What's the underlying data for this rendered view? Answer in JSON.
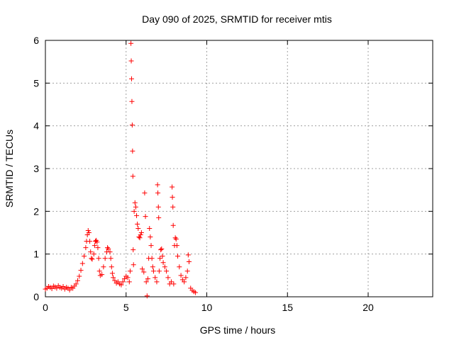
{
  "chart_data": {
    "type": "scatter",
    "title": "Day 090 of 2025, SRMTID for receiver mtis",
    "xlabel": "GPS time / hours",
    "ylabel": "SRMTID / TECUs",
    "xlim": [
      0,
      24
    ],
    "ylim": [
      0,
      6
    ],
    "xticks": [
      0,
      5,
      10,
      15,
      20
    ],
    "yticks": [
      0,
      1,
      2,
      3,
      4,
      5,
      6
    ],
    "grid": true,
    "marker": "+",
    "series": [
      {
        "name": "SRMTID",
        "color": "#ff0000",
        "points": [
          [
            0.0,
            0.18
          ],
          [
            0.1,
            0.2
          ],
          [
            0.2,
            0.24
          ],
          [
            0.3,
            0.22
          ],
          [
            0.4,
            0.19
          ],
          [
            0.5,
            0.25
          ],
          [
            0.6,
            0.23
          ],
          [
            0.7,
            0.2
          ],
          [
            0.8,
            0.26
          ],
          [
            0.9,
            0.22
          ],
          [
            1.0,
            0.2
          ],
          [
            1.1,
            0.24
          ],
          [
            1.2,
            0.18
          ],
          [
            1.3,
            0.22
          ],
          [
            1.4,
            0.2
          ],
          [
            1.5,
            0.16
          ],
          [
            1.6,
            0.22
          ],
          [
            1.7,
            0.2
          ],
          [
            1.8,
            0.25
          ],
          [
            1.9,
            0.3
          ],
          [
            2.0,
            0.38
          ],
          [
            2.1,
            0.48
          ],
          [
            2.2,
            0.62
          ],
          [
            2.3,
            0.78
          ],
          [
            2.4,
            0.95
          ],
          [
            2.5,
            1.15
          ],
          [
            2.55,
            1.3
          ],
          [
            2.6,
            1.45
          ],
          [
            2.65,
            1.55
          ],
          [
            2.7,
            1.5
          ],
          [
            2.75,
            1.3
          ],
          [
            2.8,
            1.05
          ],
          [
            2.85,
            0.9
          ],
          [
            2.9,
            0.88
          ],
          [
            3.0,
            1.0
          ],
          [
            3.05,
            1.2
          ],
          [
            3.1,
            1.3
          ],
          [
            3.15,
            1.32
          ],
          [
            3.2,
            1.28
          ],
          [
            3.25,
            1.15
          ],
          [
            3.3,
            0.9
          ],
          [
            3.35,
            0.6
          ],
          [
            3.4,
            0.5
          ],
          [
            3.5,
            0.52
          ],
          [
            3.6,
            0.7
          ],
          [
            3.7,
            0.9
          ],
          [
            3.8,
            1.05
          ],
          [
            3.85,
            1.15
          ],
          [
            3.9,
            1.12
          ],
          [
            4.0,
            1.05
          ],
          [
            4.05,
            0.9
          ],
          [
            4.1,
            0.7
          ],
          [
            4.15,
            0.55
          ],
          [
            4.2,
            0.45
          ],
          [
            4.3,
            0.38
          ],
          [
            4.4,
            0.32
          ],
          [
            4.5,
            0.35
          ],
          [
            4.6,
            0.3
          ],
          [
            4.7,
            0.28
          ],
          [
            4.8,
            0.35
          ],
          [
            4.9,
            0.42
          ],
          [
            5.0,
            0.48
          ],
          [
            5.1,
            0.45
          ],
          [
            5.2,
            0.35
          ],
          [
            5.25,
            0.6
          ],
          [
            5.3,
            5.93
          ],
          [
            5.32,
            5.52
          ],
          [
            5.34,
            5.1
          ],
          [
            5.36,
            4.57
          ],
          [
            5.38,
            4.02
          ],
          [
            5.4,
            3.41
          ],
          [
            5.42,
            2.82
          ],
          [
            5.44,
            1.1
          ],
          [
            5.46,
            0.75
          ],
          [
            5.5,
            2.0
          ],
          [
            5.55,
            2.2
          ],
          [
            5.6,
            2.1
          ],
          [
            5.65,
            1.9
          ],
          [
            5.7,
            1.7
          ],
          [
            5.75,
            1.6
          ],
          [
            5.8,
            1.4
          ],
          [
            5.85,
            1.38
          ],
          [
            5.9,
            1.45
          ],
          [
            5.95,
            1.5
          ],
          [
            6.0,
            0.65
          ],
          [
            6.1,
            0.58
          ],
          [
            6.15,
            2.43
          ],
          [
            6.2,
            1.88
          ],
          [
            6.25,
            0.35
          ],
          [
            6.3,
            0.02
          ],
          [
            6.35,
            0.42
          ],
          [
            6.4,
            0.9
          ],
          [
            6.45,
            1.6
          ],
          [
            6.5,
            1.4
          ],
          [
            6.55,
            1.2
          ],
          [
            6.6,
            0.9
          ],
          [
            6.65,
            0.7
          ],
          [
            6.7,
            0.6
          ],
          [
            6.8,
            0.45
          ],
          [
            6.9,
            0.35
          ],
          [
            6.95,
            2.62
          ],
          [
            6.97,
            2.43
          ],
          [
            7.0,
            2.1
          ],
          [
            7.02,
            1.85
          ],
          [
            7.05,
            0.6
          ],
          [
            7.1,
            0.9
          ],
          [
            7.15,
            1.1
          ],
          [
            7.2,
            1.12
          ],
          [
            7.25,
            0.95
          ],
          [
            7.3,
            0.8
          ],
          [
            7.4,
            0.7
          ],
          [
            7.5,
            0.6
          ],
          [
            7.6,
            0.45
          ],
          [
            7.7,
            0.3
          ],
          [
            7.8,
            0.35
          ],
          [
            7.85,
            2.57
          ],
          [
            7.87,
            2.33
          ],
          [
            7.9,
            2.1
          ],
          [
            7.92,
            1.67
          ],
          [
            7.95,
            0.3
          ],
          [
            8.0,
            1.2
          ],
          [
            8.05,
            1.38
          ],
          [
            8.1,
            1.35
          ],
          [
            8.15,
            1.2
          ],
          [
            8.2,
            0.95
          ],
          [
            8.3,
            0.7
          ],
          [
            8.4,
            0.5
          ],
          [
            8.5,
            0.4
          ],
          [
            8.6,
            0.35
          ],
          [
            8.7,
            0.45
          ],
          [
            8.8,
            0.6
          ],
          [
            8.85,
            0.98
          ],
          [
            8.9,
            0.82
          ],
          [
            9.0,
            0.2
          ],
          [
            9.1,
            0.15
          ],
          [
            9.2,
            0.12
          ],
          [
            9.3,
            0.1
          ]
        ]
      }
    ]
  }
}
